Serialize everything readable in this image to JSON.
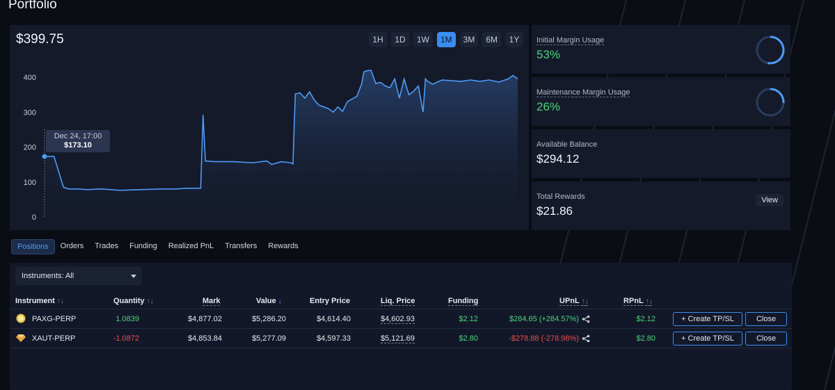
{
  "page": {
    "title": "Portfolio"
  },
  "chart": {
    "balance": "$399.75",
    "ranges": [
      "1H",
      "1D",
      "1W",
      "1M",
      "3M",
      "6M",
      "1Y"
    ],
    "active_range": "1M",
    "tooltip": {
      "date": "Dec 24, 17:00",
      "value": "$173.10"
    },
    "line_color": "#4f9bf7"
  },
  "chart_data": {
    "type": "area",
    "y_ticks": [
      "0",
      "100",
      "200",
      "300",
      "400"
    ],
    "ylim": [
      0,
      440
    ],
    "x": [
      0,
      2,
      4,
      5,
      7,
      9,
      12,
      16,
      20,
      25,
      28,
      30,
      32,
      33,
      33.5,
      34,
      36,
      40,
      44,
      47,
      48,
      50,
      52,
      52.5,
      53,
      54,
      55,
      56,
      57,
      58,
      59,
      60,
      61,
      62,
      63,
      64,
      66,
      67,
      67.5,
      68,
      69,
      70,
      71,
      72,
      73,
      74,
      75,
      76,
      77,
      78,
      79,
      80,
      80.5,
      81,
      82,
      84,
      86,
      88,
      90,
      92,
      94,
      96,
      98,
      99,
      100
    ],
    "values": [
      173,
      173,
      85,
      80,
      80,
      78,
      80,
      76,
      78,
      80,
      80,
      82,
      82,
      82,
      292,
      160,
      158,
      158,
      155,
      160,
      150,
      158,
      155,
      152,
      352,
      355,
      340,
      358,
      335,
      320,
      315,
      310,
      300,
      315,
      302,
      330,
      345,
      380,
      415,
      418,
      420,
      382,
      385,
      375,
      370,
      395,
      340,
      395,
      350,
      360,
      375,
      300,
      395,
      388,
      380,
      392,
      390,
      388,
      392,
      388,
      392,
      386,
      395,
      405,
      395
    ]
  },
  "stats": [
    {
      "label": "Initial Margin Usage",
      "value": "53%",
      "ring_pct": 53
    },
    {
      "label": "Maintenance Margin Usage",
      "value": "26%",
      "ring_pct": 26
    },
    {
      "label": "Available Balance",
      "value": "$294.12"
    },
    {
      "label": "Total Rewards",
      "value": "$21.86",
      "button": "View"
    }
  ],
  "tabs": [
    "Positions",
    "Orders",
    "Trades",
    "Funding",
    "Realized PnL",
    "Transfers",
    "Rewards"
  ],
  "filter": {
    "label": "Instruments: All"
  },
  "table": {
    "headers": {
      "instrument": "Instrument",
      "quantity": "Quantity",
      "mark": "Mark",
      "value": "Value",
      "entry": "Entry Price",
      "liq": "Liq. Price",
      "funding": "Funding",
      "upnl": "UPnL",
      "rpnl": "RPnL"
    },
    "rows": [
      {
        "instrument": "PAXG-PERP",
        "quantity": "1.0839",
        "mark": "$4,877.02",
        "value": "$5,286.20",
        "entry": "$4,614.40",
        "liq": "$4,602.93",
        "funding": "$2.12",
        "upnl": "$284.65 (+284.57%)",
        "rpnl": "$2.12",
        "tp_sl": "+ Create TP/SL",
        "close": "Close"
      },
      {
        "instrument": "XAUT-PERP",
        "quantity": "-1.0872",
        "mark": "$4,853.84",
        "value": "$5,277.09",
        "entry": "$4,597.33",
        "liq": "$5,121.69",
        "funding": "$2.80",
        "upnl": "-$278.88 (-278.98%)",
        "rpnl": "$2.80",
        "tp_sl": "+ Create TP/SL",
        "close": "Close"
      }
    ]
  }
}
